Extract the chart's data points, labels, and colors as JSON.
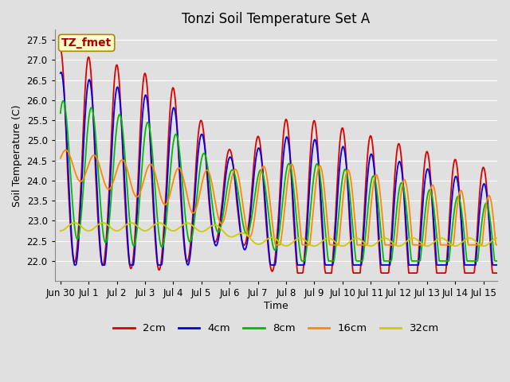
{
  "title": "Tonzi Soil Temperature Set A",
  "xlabel": "Time",
  "ylabel": "Soil Temperature (C)",
  "ylim": [
    21.5,
    27.75
  ],
  "yticks": [
    22.0,
    22.5,
    23.0,
    23.5,
    24.0,
    24.5,
    25.0,
    25.5,
    26.0,
    26.5,
    27.0,
    27.5
  ],
  "series_colors": [
    "#dd0000",
    "#0000ee",
    "#00bb00",
    "#ff8800",
    "#cccc00"
  ],
  "series_labels": [
    "2cm",
    "4cm",
    "8cm",
    "16cm",
    "32cm"
  ],
  "series_linewidths": [
    1.3,
    1.3,
    1.3,
    1.3,
    1.3
  ],
  "background_color": "#e0e0e0",
  "plot_background": "#e0e0e0",
  "grid_color": "#ffffff",
  "annotation_text": "TZ_fmet",
  "annotation_bg": "#ffffcc",
  "annotation_border": "#aa8800",
  "annotation_color": "#aa0000",
  "n_points": 720,
  "title_fontsize": 12,
  "label_fontsize": 9,
  "tick_fontsize": 8.5,
  "legend_fontsize": 9.5
}
